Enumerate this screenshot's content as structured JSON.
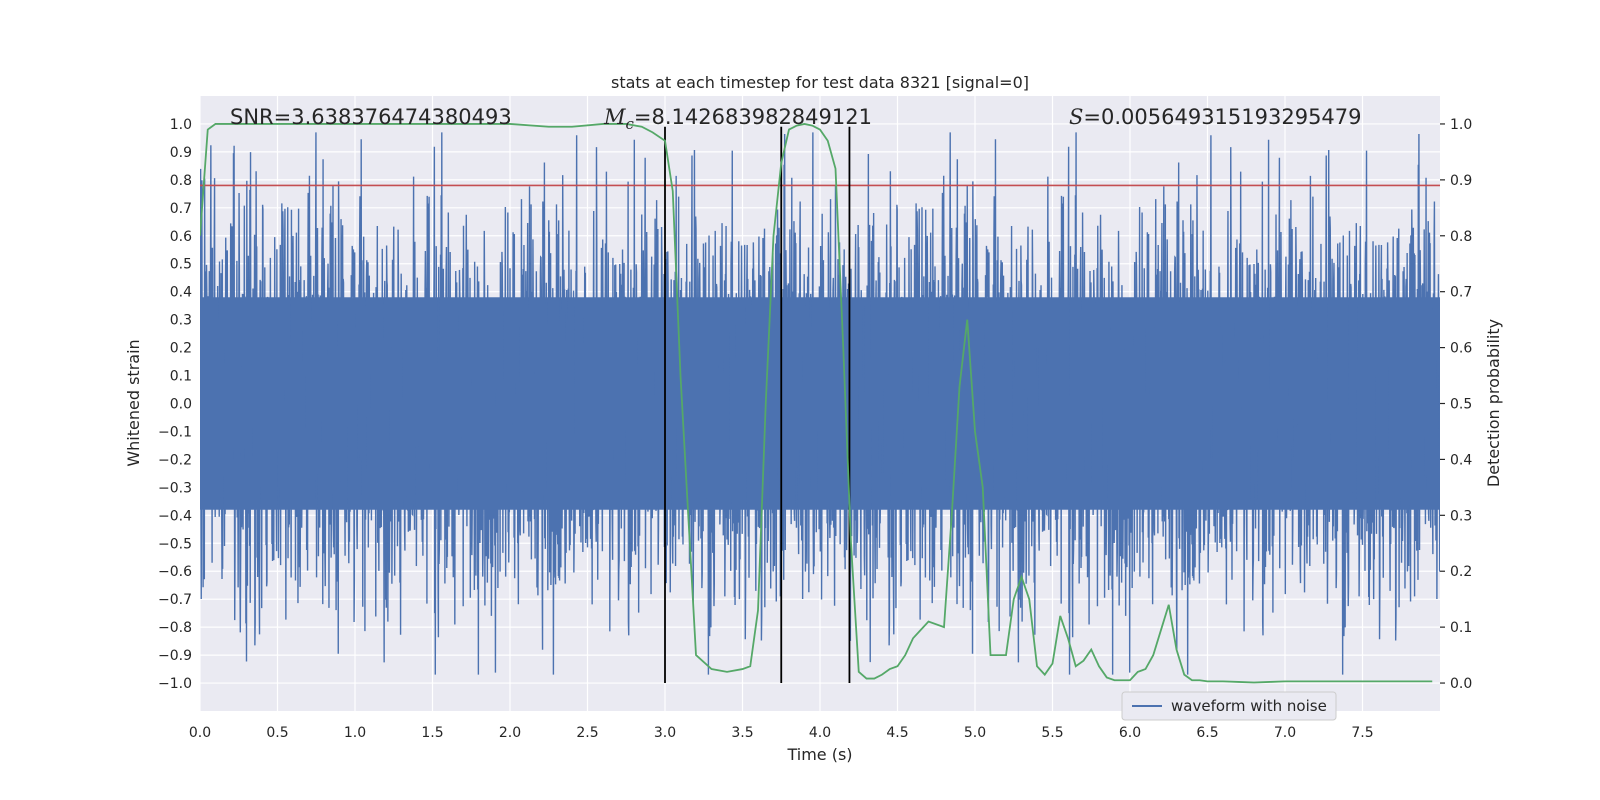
{
  "chart_data": {
    "type": "line",
    "title": "stats at each timestep for test data 8321 [signal=0]",
    "xlabel": "Time (s)",
    "ylabel_left": "Whitened strain",
    "ylabel_right": "Detection probability",
    "xlim": [
      0.0,
      8.0
    ],
    "ylim_left": [
      -1.1,
      1.1
    ],
    "ylim_right": [
      -0.05,
      1.05
    ],
    "x_ticks": [
      0.0,
      0.5,
      1.0,
      1.5,
      2.0,
      2.5,
      3.0,
      3.5,
      4.0,
      4.5,
      5.0,
      5.5,
      6.0,
      6.5,
      7.0,
      7.5
    ],
    "x_tick_labels": [
      "0.0",
      "0.5",
      "1.0",
      "1.5",
      "2.0",
      "2.5",
      "3.0",
      "3.5",
      "4.0",
      "4.5",
      "5.0",
      "5.5",
      "6.0",
      "6.5",
      "7.0",
      "7.5"
    ],
    "y_left_ticks": [
      1.0,
      0.9,
      0.8,
      0.7,
      0.6,
      0.5,
      0.4,
      0.3,
      0.2,
      0.1,
      0.0,
      -0.1,
      -0.2,
      -0.3,
      -0.4,
      -0.5,
      -0.6,
      -0.7,
      -0.8,
      -0.9,
      -1.0
    ],
    "y_left_tick_labels": [
      "1.0",
      "0.9",
      "0.8",
      "0.7",
      "0.6",
      "0.5",
      "0.4",
      "0.3",
      "0.2",
      "0.1",
      "0.0",
      "−0.1",
      "−0.2",
      "−0.3",
      "−0.4",
      "−0.5",
      "−0.6",
      "−0.7",
      "−0.8",
      "−0.9",
      "−1.0"
    ],
    "y_right_ticks": [
      1.0,
      0.9,
      0.8,
      0.7,
      0.6,
      0.5,
      0.4,
      0.3,
      0.2,
      0.1,
      0.0
    ],
    "y_right_tick_labels": [
      "1.0",
      "0.9",
      "0.8",
      "0.7",
      "0.6",
      "0.5",
      "0.4",
      "0.3",
      "0.2",
      "0.1",
      "0.0"
    ],
    "grid": true,
    "legend_position": "lower-right",
    "series": [
      {
        "name": "waveform with noise",
        "axis": "left",
        "color": "#4c72b0",
        "kind": "noise",
        "core_amplitude": 0.38,
        "typical_peak": 0.55,
        "max_abs": 0.97
      },
      {
        "axis": "right",
        "color": "#55a868",
        "x": [
          0.0,
          0.05,
          0.1,
          0.15,
          0.2,
          0.3,
          0.5,
          1.0,
          1.5,
          2.0,
          2.25,
          2.4,
          2.6,
          2.75,
          2.85,
          2.92,
          3.0,
          3.05,
          3.1,
          3.2,
          3.3,
          3.4,
          3.5,
          3.55,
          3.6,
          3.65,
          3.7,
          3.75,
          3.8,
          3.85,
          3.9,
          3.95,
          4.0,
          4.05,
          4.1,
          4.15,
          4.2,
          4.25,
          4.3,
          4.35,
          4.4,
          4.45,
          4.5,
          4.55,
          4.6,
          4.7,
          4.8,
          4.85,
          4.9,
          4.95,
          5.0,
          5.05,
          5.1,
          5.15,
          5.2,
          5.25,
          5.3,
          5.35,
          5.4,
          5.45,
          5.5,
          5.55,
          5.6,
          5.65,
          5.7,
          5.75,
          5.8,
          5.85,
          5.9,
          5.95,
          6.0,
          6.05,
          6.1,
          6.15,
          6.2,
          6.25,
          6.3,
          6.35,
          6.4,
          6.45,
          6.5,
          6.55,
          6.6,
          6.7,
          6.8,
          6.9,
          7.0,
          7.2,
          7.4,
          7.6,
          7.8,
          7.95
        ],
        "y": [
          0.8,
          0.99,
          1.0,
          1.0,
          1.0,
          1.0,
          1.0,
          1.0,
          1.0,
          1.0,
          0.995,
          0.995,
          1.0,
          1.0,
          0.995,
          0.985,
          0.97,
          0.88,
          0.55,
          0.05,
          0.025,
          0.02,
          0.025,
          0.03,
          0.13,
          0.5,
          0.8,
          0.93,
          0.99,
          0.997,
          1.0,
          0.997,
          0.99,
          0.97,
          0.92,
          0.6,
          0.25,
          0.02,
          0.008,
          0.008,
          0.015,
          0.025,
          0.03,
          0.05,
          0.08,
          0.11,
          0.1,
          0.3,
          0.53,
          0.65,
          0.45,
          0.35,
          0.05,
          0.05,
          0.05,
          0.15,
          0.19,
          0.15,
          0.03,
          0.015,
          0.035,
          0.12,
          0.08,
          0.03,
          0.04,
          0.06,
          0.03,
          0.01,
          0.005,
          0.005,
          0.005,
          0.02,
          0.025,
          0.05,
          0.095,
          0.14,
          0.06,
          0.015,
          0.005,
          0.005,
          0.003,
          0.003,
          0.003,
          0.002,
          0.001,
          0.002,
          0.003,
          0.003,
          0.003,
          0.003,
          0.003,
          0.003
        ]
      }
    ],
    "threshold_line": {
      "axis": "left",
      "value": 0.78,
      "color": "#c44e52"
    },
    "vertical_lines": [
      {
        "x": 3.0,
        "y_from": -1.0,
        "y_to": 0.99
      },
      {
        "x": 3.75,
        "y_from": -1.0,
        "y_to": 0.99
      },
      {
        "x": 4.19,
        "y_from": -1.0,
        "y_to": 0.99
      }
    ],
    "annotations": {
      "snr": "SNR=3.638376474380493",
      "mc_symbol": "M",
      "mc_subscript": "c",
      "mc_value": "=8.142683982849121",
      "s_symbol": "S",
      "s_value": "=0.005649315193295479"
    }
  }
}
